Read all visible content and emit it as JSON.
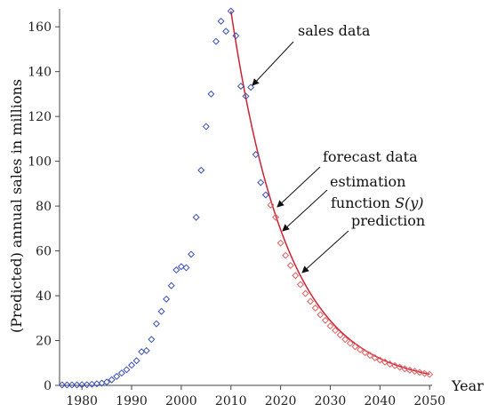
{
  "chart_data": {
    "type": "scatter",
    "title": "",
    "xlabel": "Year",
    "ylabel": "(Predicted) annual sales in millions",
    "xlim": [
      1975.5,
      2050.5
    ],
    "ylim": [
      0,
      168
    ],
    "x_ticks": [
      1980,
      1990,
      2000,
      2010,
      2020,
      2030,
      2040,
      2050
    ],
    "y_ticks": [
      0,
      20,
      40,
      60,
      80,
      100,
      120,
      140,
      160
    ],
    "grid": false,
    "colors": {
      "sales": "#3b4fb8",
      "forecast": "#e06060",
      "curve": "#cc2233",
      "axis": "#444444"
    },
    "series": [
      {
        "name": "sales data",
        "marker": "diamond",
        "x": [
          1976,
          1977,
          1978,
          1979,
          1980,
          1981,
          1982,
          1983,
          1984,
          1985,
          1986,
          1987,
          1988,
          1989,
          1990,
          1991,
          1992,
          1993,
          1994,
          1995,
          1996,
          1997,
          1998,
          1999,
          2000,
          2001,
          2002,
          2003,
          2004,
          2005,
          2006,
          2007,
          2008,
          2009,
          2010,
          2011,
          2012,
          2013,
          2014,
          2015,
          2016,
          2017
        ],
        "y": [
          0.2,
          0.2,
          0.2,
          0.2,
          0.3,
          0.3,
          0.5,
          0.7,
          1.0,
          1.5,
          2.5,
          4.0,
          5.5,
          7.0,
          9.0,
          11.0,
          15.0,
          15.5,
          20.5,
          27.5,
          33.0,
          38.5,
          44.5,
          51.5,
          53.0,
          52.5,
          58.5,
          75.0,
          96.0,
          115.5,
          130.0,
          153.5,
          162.5,
          158.0,
          167.0,
          156.0,
          133.5,
          129.0,
          133.0,
          103.0,
          90.5,
          85.0
        ]
      },
      {
        "name": "forecast data",
        "marker": "diamond",
        "x": [
          2018,
          2019,
          2020,
          2021,
          2022,
          2023,
          2024,
          2025,
          2026,
          2027,
          2028,
          2029,
          2030,
          2031,
          2032,
          2033,
          2034,
          2035,
          2036,
          2037,
          2038,
          2039,
          2040,
          2041,
          2042,
          2043,
          2044,
          2045,
          2046,
          2047,
          2048,
          2049,
          2050
        ],
        "y": [
          80.5,
          75.0,
          63.5,
          58.0,
          53.5,
          49.0,
          45.0,
          41.0,
          37.5,
          34.5,
          31.5,
          29.0,
          26.5,
          24.5,
          22.5,
          20.5,
          18.8,
          17.3,
          15.9,
          14.6,
          13.4,
          12.3,
          11.3,
          10.4,
          9.5,
          8.8,
          8.1,
          7.4,
          6.8,
          6.3,
          5.8,
          5.3,
          4.9
        ]
      }
    ],
    "curve": {
      "name": "estimation function S(y)",
      "x_start": 2010,
      "x_end": 2050,
      "y_at_start": 167,
      "y_at_end": 5.0
    },
    "annotations": {
      "sales": "sales data",
      "forecast": "forecast data",
      "estimation_line1": "estimation",
      "estimation_line2_prefix": "function ",
      "estimation_line2_math": "S(y)",
      "prediction": "prediction"
    }
  }
}
